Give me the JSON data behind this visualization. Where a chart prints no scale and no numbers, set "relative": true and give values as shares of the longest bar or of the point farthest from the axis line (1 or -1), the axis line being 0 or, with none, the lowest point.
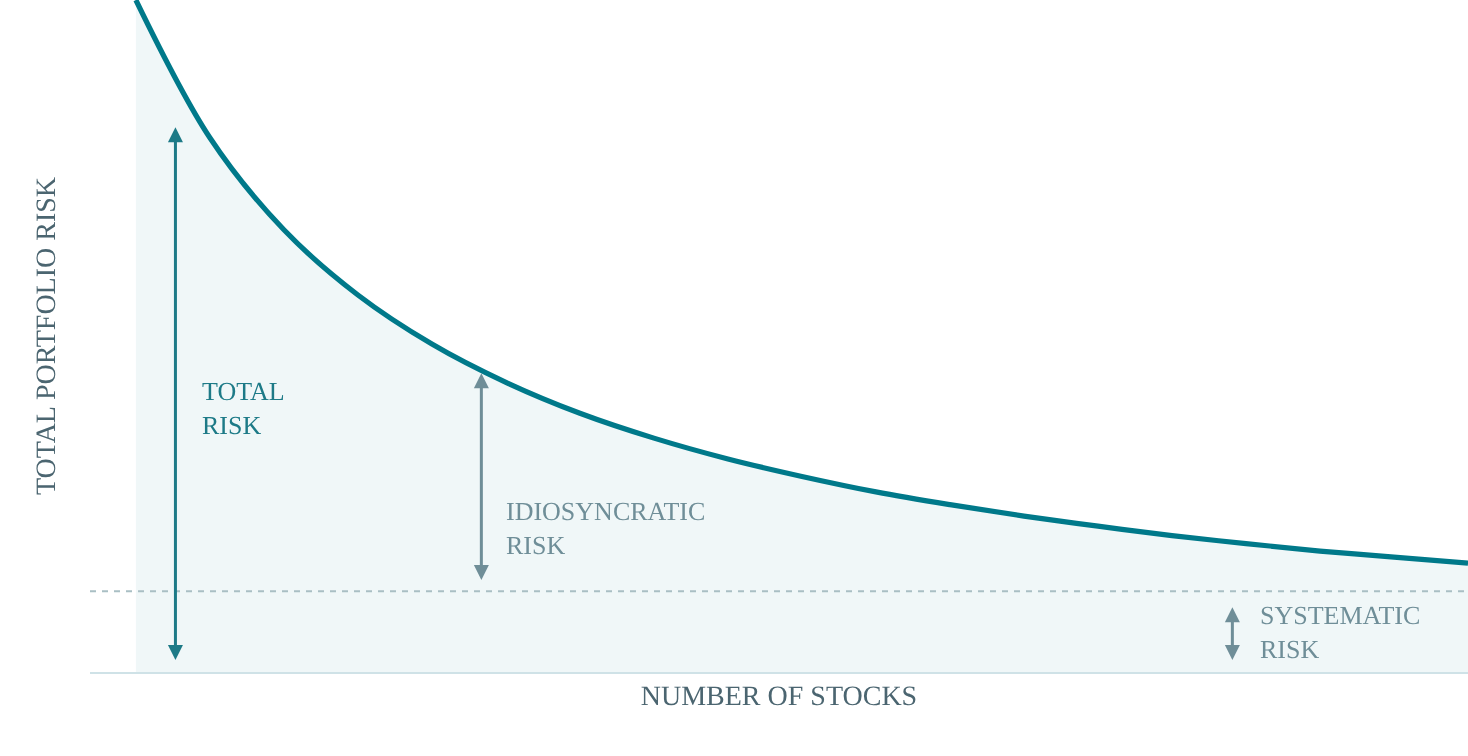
{
  "chart_data": {
    "type": "area",
    "relative": true,
    "xlabel": "NUMBER OF STOCKS",
    "ylabel": "TOTAL PORTFOLIO RISK",
    "categories": [
      null,
      null,
      null,
      null,
      null,
      null,
      null,
      null,
      null,
      null,
      null,
      null,
      null,
      null,
      null,
      null,
      null,
      null,
      null
    ],
    "series": [
      {
        "color": "#00798a",
        "values": [
          1.0,
          0.795,
          0.658,
          0.561,
          0.488,
          0.431,
          0.385,
          0.348,
          0.317,
          0.291,
          0.268,
          0.249,
          0.232,
          0.217,
          0.203,
          0.191,
          0.18,
          0.171,
          0.162
        ]
      }
    ],
    "ref_lines": [
      {
        "axis": "y",
        "value": 0.12,
        "color": "#a9bfc4",
        "line_style": "dotted"
      }
    ],
    "annotations": [
      "TOTAL\nRISK",
      "IDIOSYNCRATIC\nRISK",
      "SYSTEMATIC\nRISK"
    ]
  }
}
